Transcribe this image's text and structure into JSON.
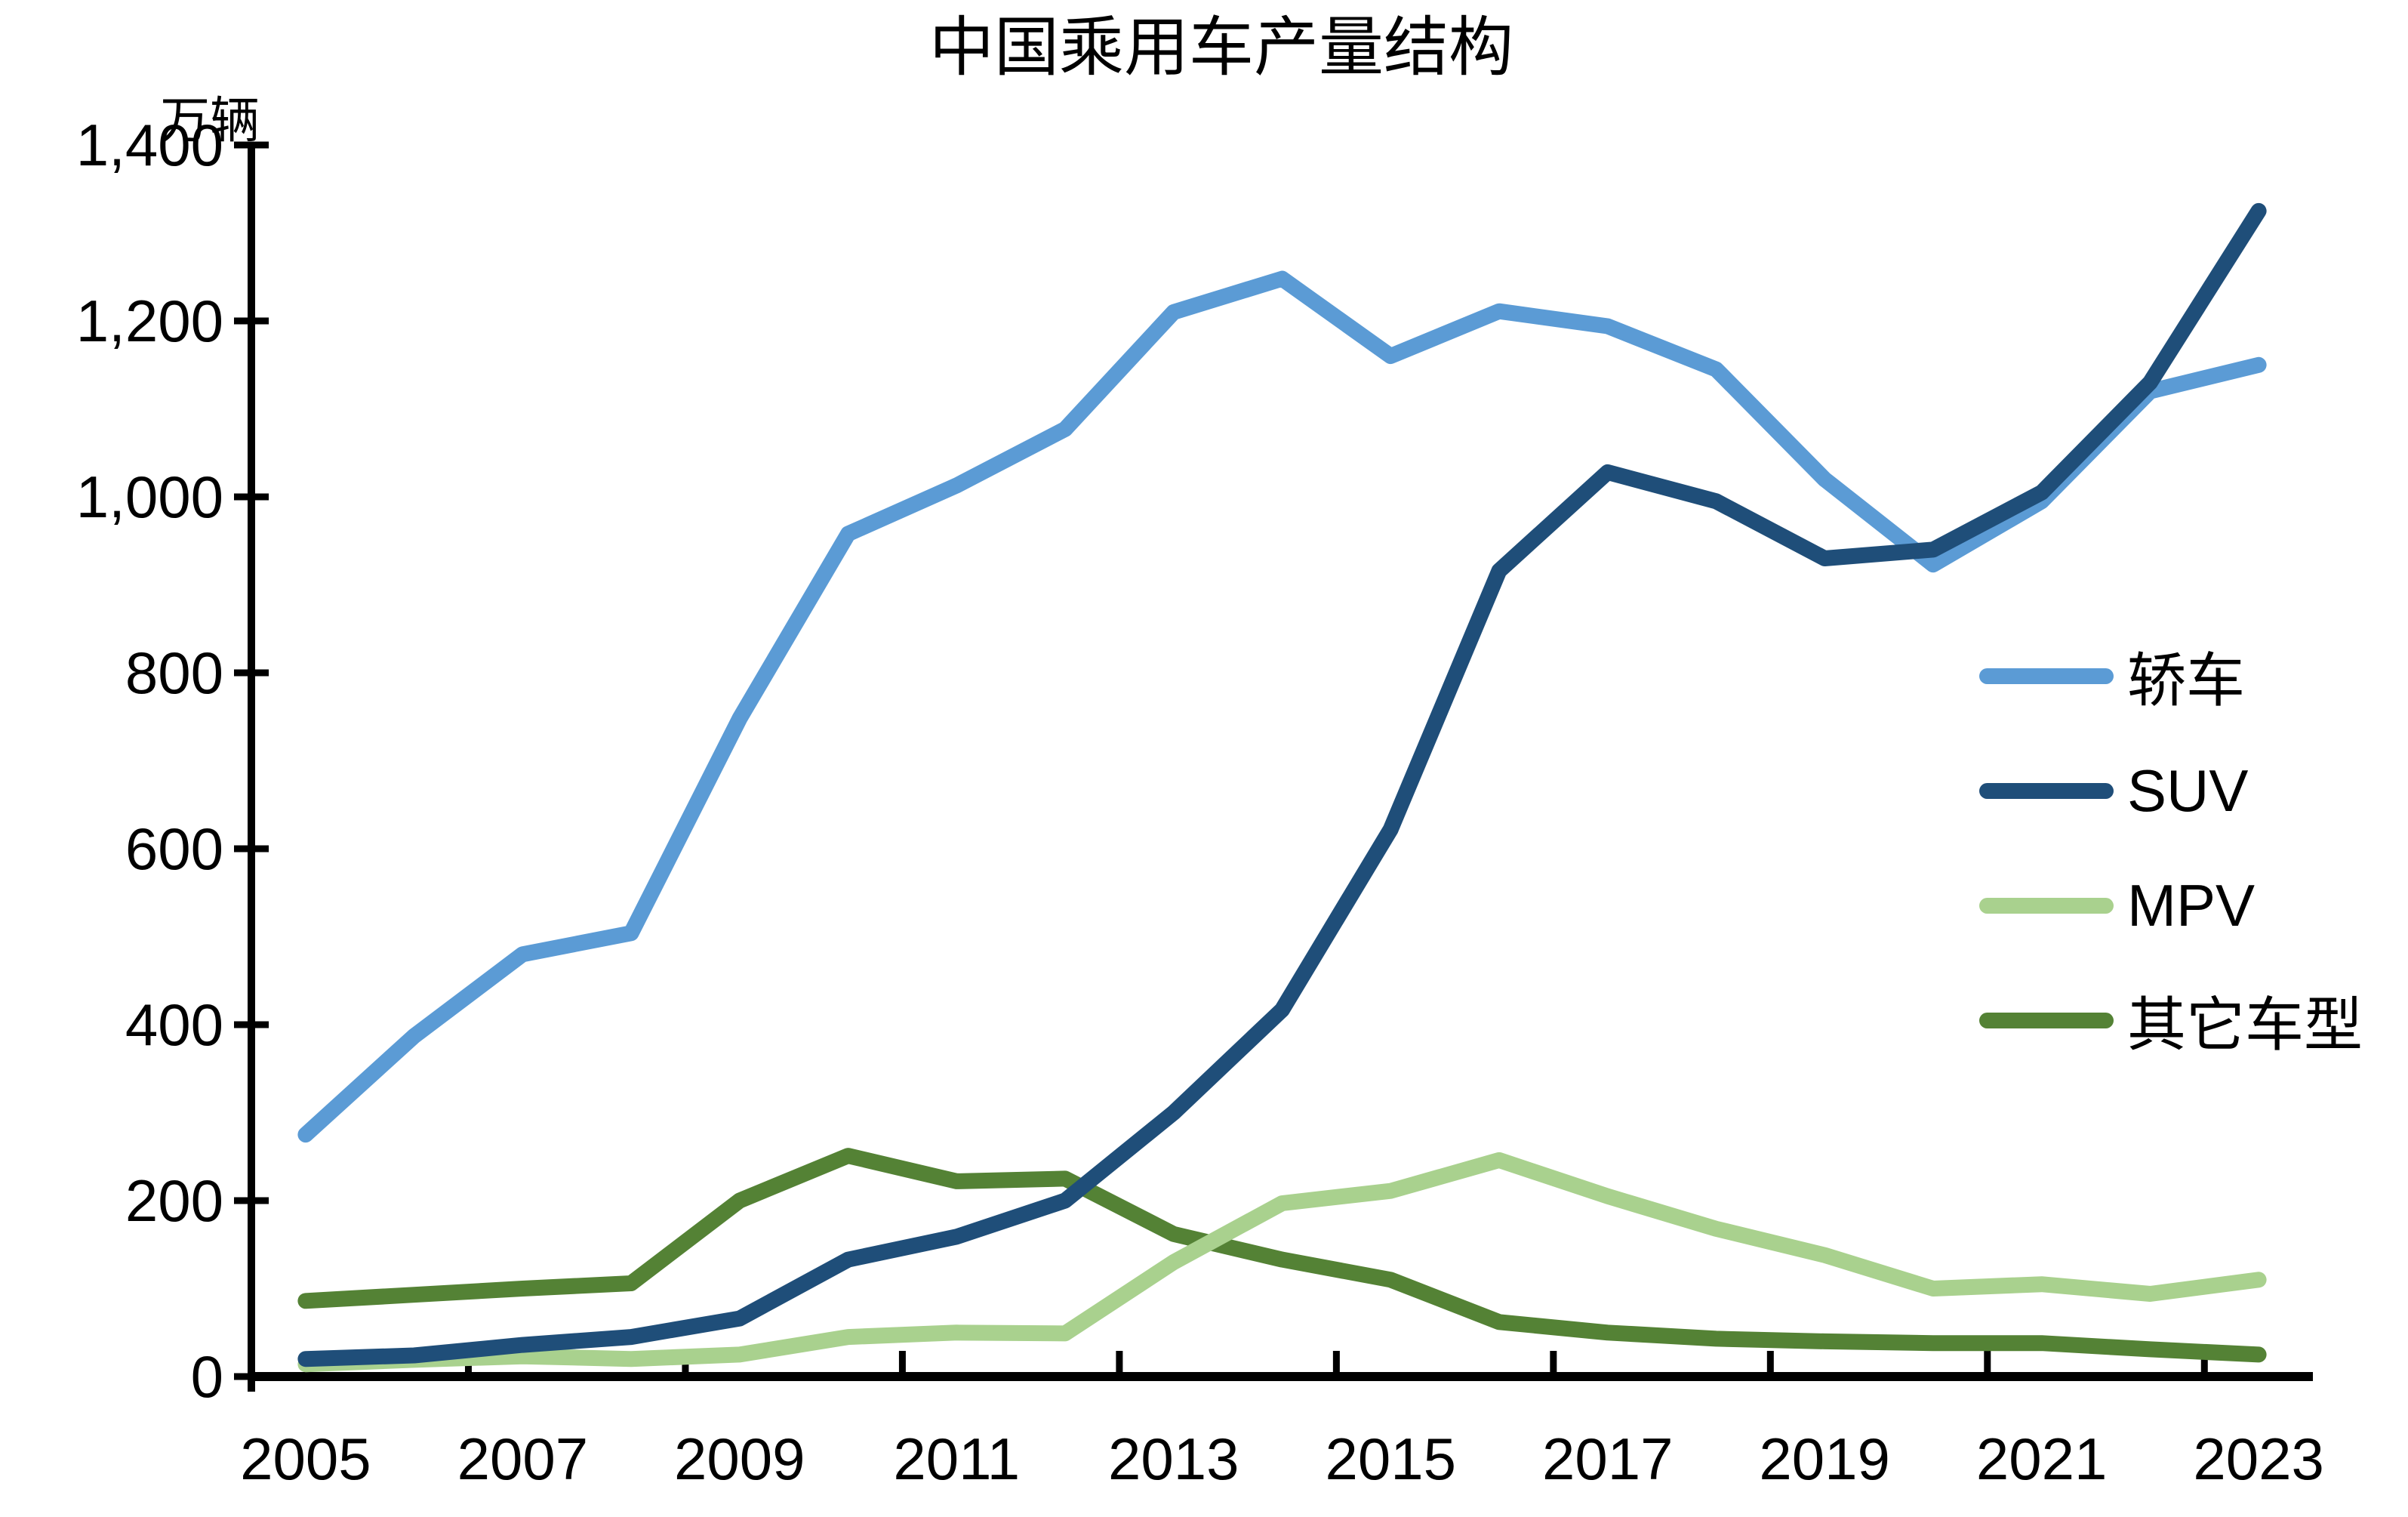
{
  "chart_data": {
    "type": "line",
    "title": "中国乘用车产量结构",
    "unit_label": "万辆",
    "xlabel": "",
    "ylabel": "",
    "ylim": [
      0,
      1400
    ],
    "y_tick_values": [
      0,
      200,
      400,
      600,
      800,
      1000,
      1200,
      1400
    ],
    "y_tick_labels": [
      "0",
      "200",
      "400",
      "600",
      "800",
      "1,000",
      "1,200",
      "1,400"
    ],
    "categories": [
      2005,
      2006,
      2007,
      2008,
      2009,
      2010,
      2011,
      2012,
      2013,
      2014,
      2015,
      2016,
      2017,
      2018,
      2019,
      2020,
      2021,
      2022,
      2023
    ],
    "x_tick_labels": [
      "2005",
      "2007",
      "2009",
      "2011",
      "2013",
      "2015",
      "2017",
      "2019",
      "2021",
      "2023"
    ],
    "grid": false,
    "legend_position": "right-middle",
    "series": [
      {
        "name": "轿车",
        "color": "#5B9BD5",
        "values": [
          275,
          387,
          480,
          504,
          748,
          958,
          1013,
          1077,
          1210,
          1248,
          1160,
          1211,
          1194,
          1145,
          1020,
          923,
          995,
          1120,
          1150
        ]
      },
      {
        "name": "SUV",
        "color": "#1F4E79",
        "values": [
          20,
          24,
          36,
          45,
          66,
          133,
          159,
          200,
          300,
          417,
          622,
          916,
          1028,
          995,
          930,
          940,
          1005,
          1130,
          1325
        ]
      },
      {
        "name": "MPV",
        "color": "#A9D18E",
        "values": [
          14,
          19,
          23,
          20,
          25,
          45,
          50,
          49,
          130,
          197,
          211,
          246,
          205,
          168,
          138,
          100,
          105,
          94,
          110
        ]
      },
      {
        "name": "其它车型",
        "color": "#548235",
        "values": [
          86,
          93,
          100,
          106,
          200,
          251,
          222,
          225,
          162,
          133,
          110,
          62,
          50,
          43,
          40,
          38,
          38,
          31,
          25
        ]
      }
    ]
  }
}
